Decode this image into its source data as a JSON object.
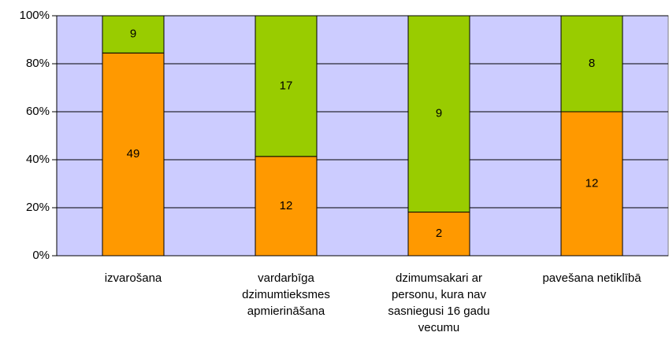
{
  "chart_data": {
    "type": "bar",
    "stacked": "percent",
    "categories": [
      "izvarošana",
      "vardarbīga dzimumtieksmes apmierināšana",
      "dzimumsakari ar personu, kura nav sasniegusi 16 gadu vecumu",
      "pavešana netiklībā"
    ],
    "series": [
      {
        "color": "#ff9900",
        "values": [
          49,
          12,
          2,
          12
        ]
      },
      {
        "color": "#99cc00",
        "values": [
          9,
          17,
          9,
          8
        ]
      }
    ],
    "ylim": [
      0,
      100
    ],
    "yticks": [
      {
        "value": 0,
        "label": "0%"
      },
      {
        "value": 20,
        "label": "20%"
      },
      {
        "value": 40,
        "label": "40%"
      },
      {
        "value": 60,
        "label": "60%"
      },
      {
        "value": 80,
        "label": "80%"
      },
      {
        "value": 100,
        "label": "100%"
      }
    ],
    "grid": true,
    "plot_background": "#ccccff"
  }
}
